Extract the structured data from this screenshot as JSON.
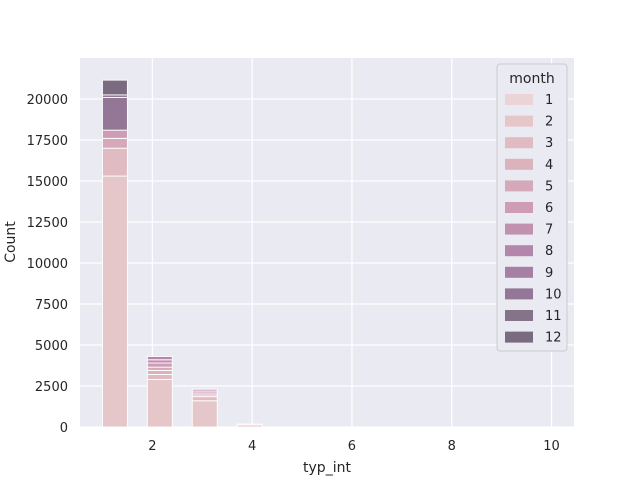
{
  "chart_data": {
    "type": "bar",
    "stacked": true,
    "xlabel": "typ_int",
    "ylabel": "Count",
    "xlim": [
      0.55,
      10.45
    ],
    "ylim": [
      0,
      22500
    ],
    "xticks": [
      2,
      4,
      6,
      8,
      10
    ],
    "yticks": [
      0,
      2500,
      5000,
      7500,
      10000,
      12500,
      15000,
      17500,
      20000
    ],
    "bin_width": 0.5,
    "grid": true,
    "background": "#eaeaf2",
    "legend": {
      "title": "month",
      "placement": "top-right",
      "entries": [
        "1",
        "2",
        "3",
        "4",
        "5",
        "6",
        "7",
        "8",
        "9",
        "10",
        "11",
        "12"
      ]
    },
    "series_colors": [
      "#ecd4d6",
      "#e5c6c9",
      "#e0bcc2",
      "#dcb2bd",
      "#d6a9ba",
      "#cc9db5",
      "#c192b0",
      "#b486ab",
      "#a57fa4",
      "#947796",
      "#85738a",
      "#7a6b80"
    ],
    "bins": [
      {
        "x": 1.25,
        "stacks": [
          0,
          15300,
          1700,
          0,
          600,
          500,
          0,
          0,
          0,
          2000,
          150,
          900
        ]
      },
      {
        "x": 2.15,
        "stacks": [
          0,
          2900,
          300,
          250,
          200,
          250,
          200,
          200,
          0,
          0,
          0,
          0
        ]
      },
      {
        "x": 3.05,
        "stacks": [
          0,
          1600,
          250,
          100,
          120,
          120,
          110,
          0,
          0,
          0,
          0,
          0
        ]
      },
      {
        "x": 3.95,
        "stacks": [
          0,
          120,
          60,
          0,
          0,
          0,
          0,
          0,
          0,
          0,
          0,
          0
        ]
      }
    ]
  }
}
